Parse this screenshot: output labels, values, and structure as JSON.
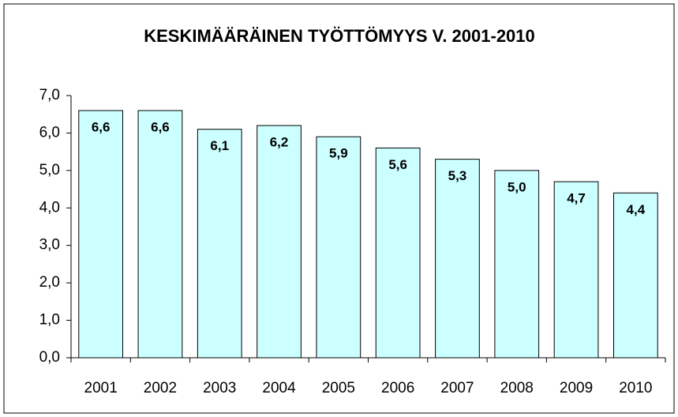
{
  "chart_data": {
    "type": "bar",
    "title": "KESKIMÄÄRÄINEN TYÖTTÖMYYS V. 2001-2010",
    "categories": [
      "2001",
      "2002",
      "2003",
      "2004",
      "2005",
      "2006",
      "2007",
      "2008",
      "2009",
      "2010"
    ],
    "values": [
      6.6,
      6.6,
      6.1,
      6.2,
      5.9,
      5.6,
      5.3,
      5.0,
      4.7,
      4.4
    ],
    "value_labels": [
      "6,6",
      "6,6",
      "6,1",
      "6,2",
      "5,9",
      "5,6",
      "5,3",
      "5,0",
      "4,7",
      "4,4"
    ],
    "color": "#ccffff",
    "ylim": [
      0,
      7
    ],
    "yticks": [
      {
        "value": 0,
        "label": "0,0"
      },
      {
        "value": 1,
        "label": "1,0"
      },
      {
        "value": 2,
        "label": "2,0"
      },
      {
        "value": 3,
        "label": "3,0"
      },
      {
        "value": 4,
        "label": "4,0"
      },
      {
        "value": 5,
        "label": "5,0"
      },
      {
        "value": 6,
        "label": "6,0"
      },
      {
        "value": 7,
        "label": "7,0"
      }
    ],
    "grid": false
  }
}
